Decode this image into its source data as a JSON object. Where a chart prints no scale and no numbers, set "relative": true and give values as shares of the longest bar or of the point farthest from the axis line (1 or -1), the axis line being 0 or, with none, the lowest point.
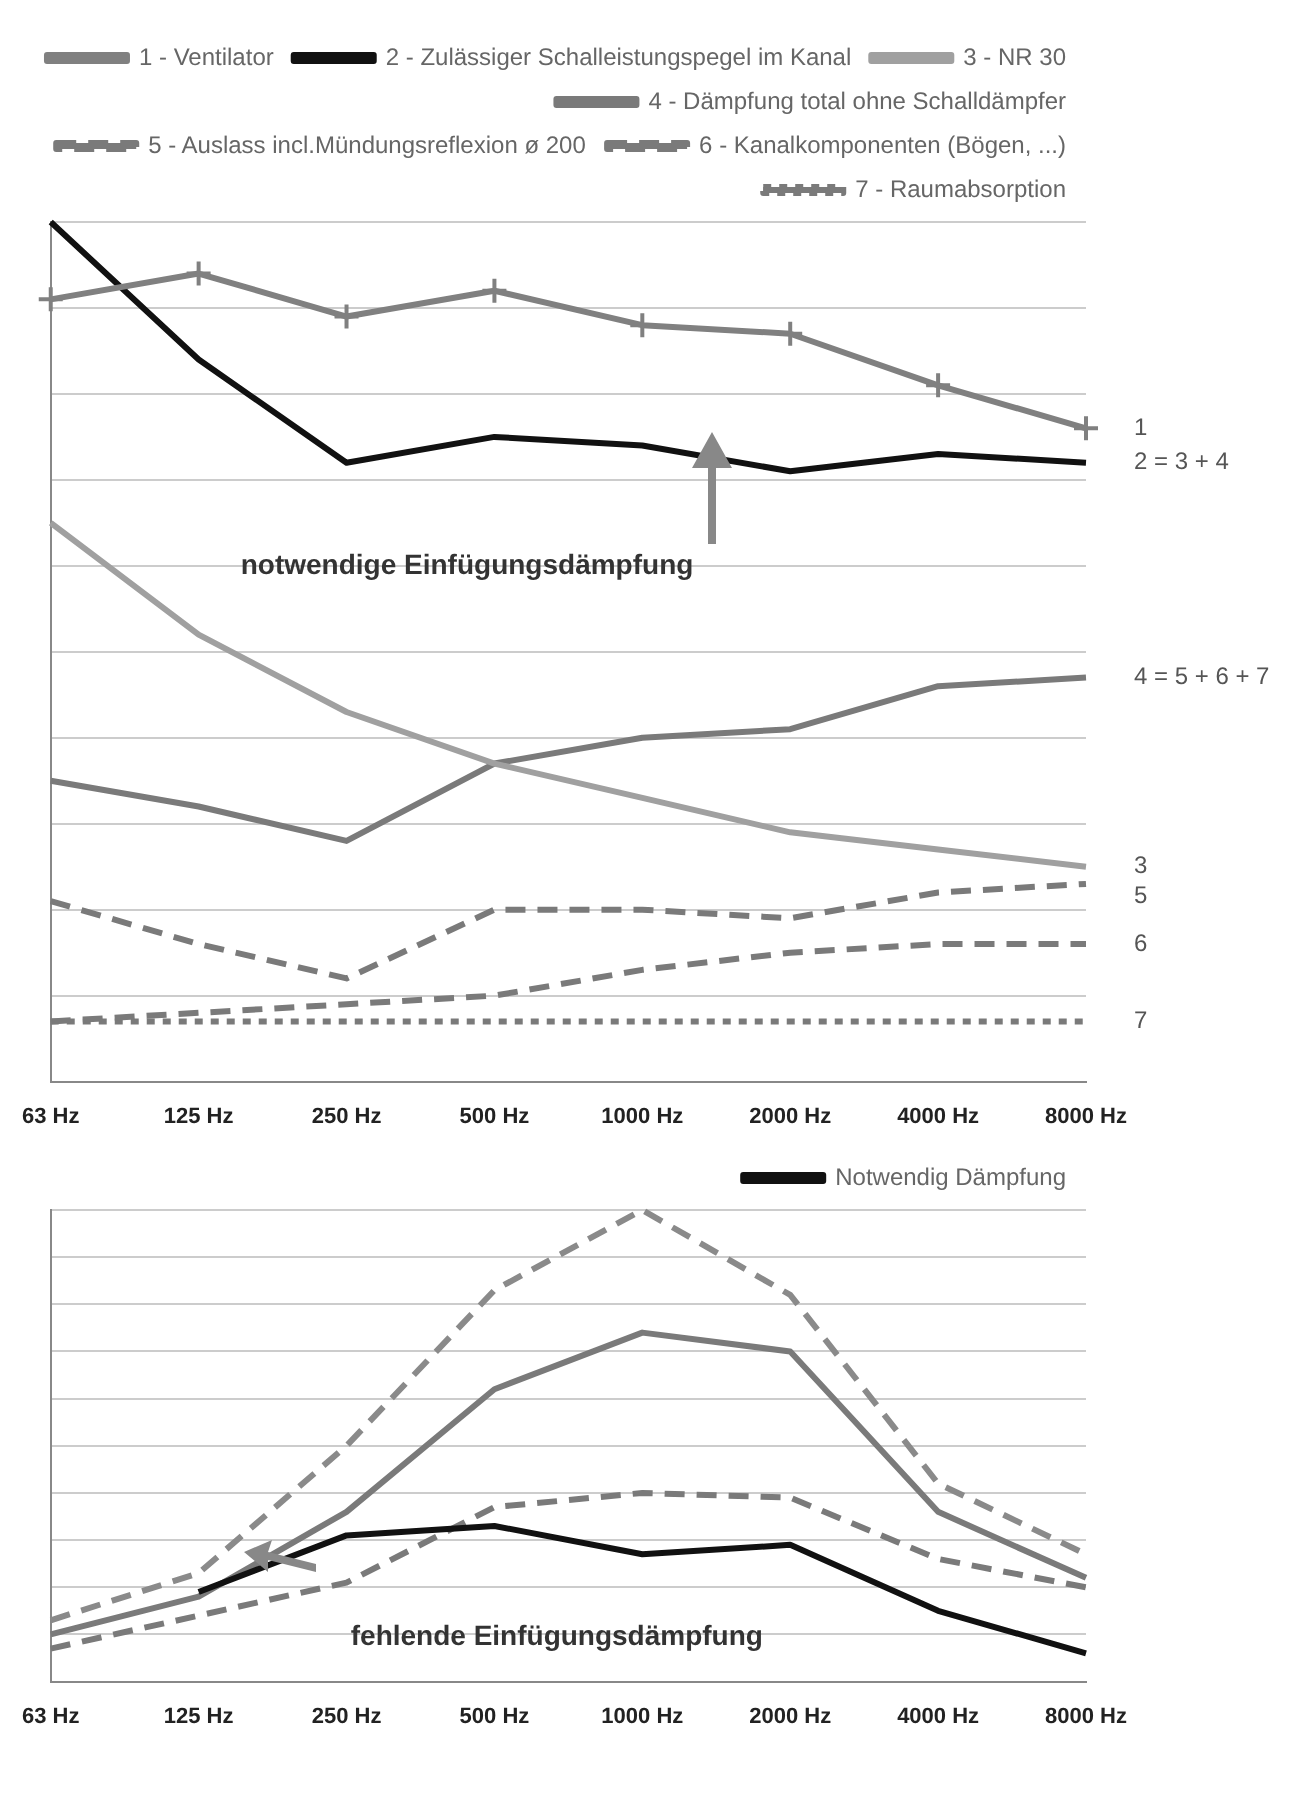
{
  "chart_data": [
    {
      "type": "line",
      "relative": true,
      "grid": "y",
      "legend": "top right",
      "categories": [
        "63 Hz",
        "125 Hz",
        "250 Hz",
        "500 Hz",
        "1000 Hz",
        "2000 Hz",
        "4000 Hz",
        "8000 Hz"
      ],
      "series": [
        {
          "name": "1 - Ventilator",
          "color": "#808080",
          "marker": "cross",
          "values": [
            0.91,
            0.94,
            0.89,
            0.92,
            0.88,
            0.87,
            0.81,
            0.76
          ]
        },
        {
          "name": "2 - Zulässiger Schalleistungspegel im Kanal",
          "color": "#111111",
          "values": [
            1,
            0.84,
            0.72,
            0.75,
            0.74,
            0.71,
            0.73,
            0.72
          ]
        },
        {
          "name": "3 - NR 30",
          "color": "#a0a0a0",
          "values": [
            0.65,
            0.52,
            0.43,
            0.37,
            0.33,
            0.29,
            0.27,
            0.25
          ]
        },
        {
          "name": "4 - Dämpfung total ohne Schalldämpfer",
          "color": "#7a7a7a",
          "values": [
            0.35,
            0.32,
            0.28,
            0.37,
            0.4,
            0.41,
            0.46,
            0.47
          ]
        },
        {
          "name": "5 - Auslass incl.Mündungsreflexion ø 200",
          "color": "#7a7a7a",
          "line_style": "dashed",
          "values": [
            0.21,
            0.16,
            0.12,
            0.2,
            0.2,
            0.19,
            0.22,
            0.23
          ]
        },
        {
          "name": "6 - Kanalkomponenten (Bögen, ...)",
          "color": "#7a7a7a",
          "line_style": "dashed",
          "values": [
            0.07,
            0.08,
            0.09,
            0.1,
            0.13,
            0.15,
            0.16,
            0.16
          ]
        },
        {
          "name": "7 - Raumabsorption",
          "color": "#7a7a7a",
          "line_style": "dotted",
          "values": [
            0.07,
            0.07,
            0.07,
            0.07,
            0.07,
            0.07,
            0.07,
            0.07
          ]
        }
      ],
      "annotations": [
        "notwendige Einfügungsdämpfung",
        {
          "text": "1",
          "x": "8000 Hz",
          "y": 0.76
        },
        {
          "text": "2 = 3 + 4",
          "x": "8000 Hz",
          "y": 0.72
        },
        {
          "text": "4 = 5 + 6 + 7",
          "x": "8000 Hz",
          "y": 0.47
        },
        {
          "text": "3",
          "x": "8000 Hz",
          "y": 0.25
        },
        {
          "text": "5",
          "x": "8000 Hz",
          "y": 0.23
        },
        {
          "text": "6",
          "x": "8000 Hz",
          "y": 0.16
        },
        {
          "text": "7",
          "x": "8000 Hz",
          "y": 0.07
        }
      ]
    },
    {
      "type": "line",
      "relative": true,
      "grid": "y",
      "legend": "top right",
      "categories": [
        "63 Hz",
        "125 Hz",
        "250 Hz",
        "500 Hz",
        "1000 Hz",
        "2000 Hz",
        "4000 Hz",
        "8000 Hz"
      ],
      "series": [
        {
          "name": "Notwendig Dämpfung",
          "color": "#111111",
          "values": [
            null,
            0.19,
            0.31,
            0.33,
            0.27,
            0.29,
            0.15,
            0.06
          ]
        },
        {
          "color": "#8a8a8a",
          "line_style": "dashed",
          "values": [
            0.13,
            0.23,
            0.5,
            0.83,
            1,
            0.82,
            0.42,
            0.27
          ]
        },
        {
          "color": "#7a7a7a",
          "values": [
            0.1,
            0.18,
            0.36,
            0.62,
            0.74,
            0.7,
            0.36,
            0.22
          ]
        },
        {
          "color": "#7a7a7a",
          "line_style": "dashed",
          "values": [
            0.07,
            0.14,
            0.21,
            0.37,
            0.4,
            0.39,
            0.26,
            0.2
          ]
        }
      ],
      "annotations": [
        "fehlende Einfügungsdämpfung"
      ]
    }
  ]
}
